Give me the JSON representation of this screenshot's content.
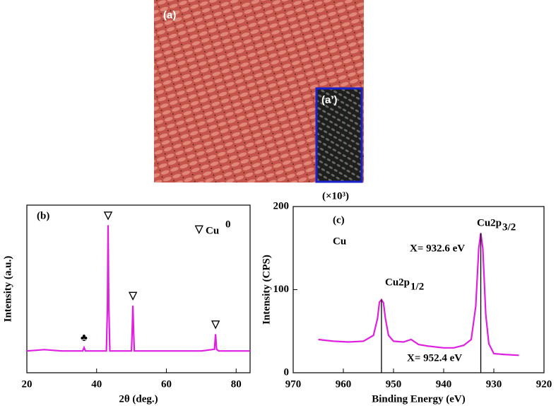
{
  "photo": {
    "label": "(a)",
    "inset_label": "(a’)"
  },
  "chart_data": [
    {
      "type": "line",
      "panel_label": "(b)",
      "x_label": "2θ (deg.)",
      "y_label": "Intensity (a.u.)",
      "legend_marker": "▽",
      "legend_text": "Cu",
      "legend_superscript": "0",
      "xlim": [
        20,
        84
      ],
      "xticks": [
        20,
        40,
        60,
        80
      ],
      "ylim": [
        0,
        100
      ],
      "series": [
        {
          "color": "#e020e0",
          "x": [
            20,
            25,
            30,
            35,
            36,
            36.4,
            36.8,
            38,
            42.8,
            43.1,
            43.3,
            43.5,
            43.8,
            45,
            50,
            50.2,
            50.4,
            50.6,
            50.8,
            55,
            60,
            65,
            70,
            73.8,
            74.1,
            74.4,
            75,
            80,
            84
          ],
          "values": [
            13,
            13.8,
            13,
            13,
            13,
            15,
            13,
            13,
            13,
            40,
            88,
            40,
            13,
            13,
            13,
            25,
            40,
            25,
            13,
            13,
            13,
            13,
            13,
            14,
            23,
            14,
            13,
            13,
            13
          ]
        }
      ],
      "peak_markers": [
        {
          "text": "♣",
          "x": 36.4
        },
        {
          "text": "▽",
          "x": 43.3
        },
        {
          "text": "▽",
          "x": 50.4
        },
        {
          "text": "▽",
          "x": 74.1
        }
      ]
    },
    {
      "type": "line",
      "panel_label": "(c)",
      "x_label": "Binding Energy (eV)",
      "y_label": "Intensity (CPS)",
      "y_multiplier": "(×10³)",
      "element_label": "Cu",
      "xlim": [
        970,
        920
      ],
      "xticks": [
        970,
        960,
        950,
        940,
        930,
        920
      ],
      "ylim": [
        0,
        200
      ],
      "yticks": [
        0,
        100,
        200
      ],
      "series": [
        {
          "color": "#e020e0",
          "x": [
            965,
            962,
            959,
            956,
            954,
            953.2,
            952.8,
            952.4,
            952,
            951.6,
            951,
            950,
            948,
            946.5,
            945,
            943,
            940,
            938,
            936,
            934.5,
            933.6,
            933,
            932.6,
            932.2,
            931.6,
            931,
            930,
            928,
            925
          ],
          "values": [
            40,
            38,
            37,
            38,
            45,
            65,
            85,
            88,
            84,
            65,
            45,
            38,
            37,
            40,
            34,
            32,
            30,
            30,
            33,
            40,
            80,
            150,
            168,
            150,
            70,
            35,
            23,
            22,
            21
          ]
        }
      ],
      "reference_lines": [
        {
          "x": 952.4,
          "label": "X= 952.4 eV",
          "peak": "Cu2p",
          "peak_subscript": "1/2"
        },
        {
          "x": 932.6,
          "label": "X= 932.6 eV",
          "peak": "Cu2p",
          "peak_subscript": "3/2"
        }
      ]
    }
  ]
}
